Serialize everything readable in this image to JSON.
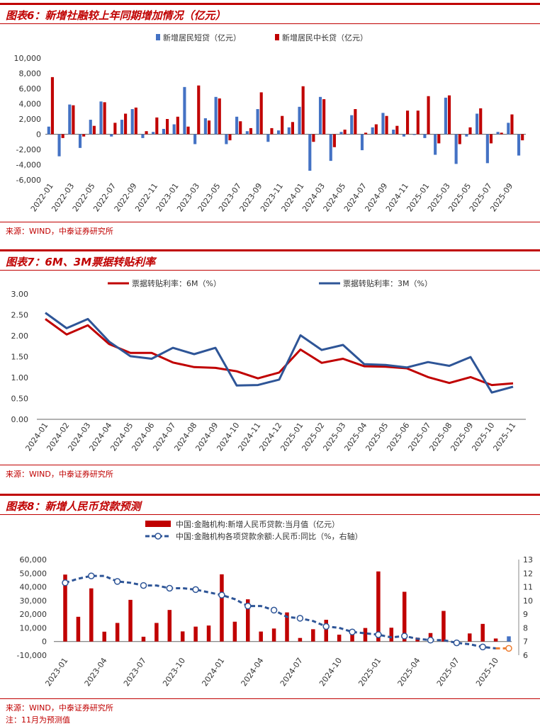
{
  "chart_data": [
    {
      "type": "bar",
      "title": "图表6：新增社融较上年同期增加情况（亿元）",
      "source": "来源：WIND，中泰证券研究所",
      "ylim": [
        -6000,
        10000
      ],
      "yticks": [
        "10,000",
        "8,000",
        "6,000",
        "4,000",
        "2,000",
        "0",
        "-2,000",
        "-4,000",
        "-6,000"
      ],
      "ytick_values": [
        10000,
        8000,
        6000,
        4000,
        2000,
        0,
        -2000,
        -4000,
        -6000
      ],
      "categories": [
        "2022-01",
        "2022-02",
        "2022-03",
        "2022-04",
        "2022-05",
        "2022-06",
        "2022-07",
        "2022-08",
        "2022-09",
        "2022-10",
        "2022-11",
        "2022-12",
        "2023-01",
        "2023-02",
        "2023-03",
        "2023-04",
        "2023-05",
        "2023-06",
        "2023-07",
        "2023-08",
        "2023-09",
        "2023-10",
        "2023-11",
        "2023-12",
        "2024-01",
        "2024-02",
        "2024-03",
        "2024-04",
        "2024-05",
        "2024-06",
        "2024-07",
        "2024-08",
        "2024-09",
        "2024-10",
        "2024-11",
        "2024-12",
        "2025-01",
        "2025-02",
        "2025-03",
        "2025-04",
        "2025-05",
        "2025-06",
        "2025-07",
        "2025-08",
        "2025-09",
        "2025-10"
      ],
      "xtick_labels": [
        "2022-01",
        "2022-03",
        "2022-05",
        "2022-07",
        "2022-09",
        "2022-11",
        "2023-01",
        "2023-03",
        "2023-05",
        "2023-07",
        "2023-09",
        "2023-11",
        "2024-01",
        "2024-03",
        "2024-05",
        "2024-07",
        "2024-09",
        "2024-11",
        "2025-01",
        "2025-03",
        "2025-05",
        "2025-07",
        "2025-09"
      ],
      "series": [
        {
          "name": "新增居民短贷（亿元）",
          "color": "#4472c4",
          "values": [
            1000,
            -2900,
            3900,
            -1800,
            1900,
            4300,
            -300,
            1900,
            3300,
            -500,
            300,
            700,
            1300,
            6200,
            -1300,
            2100,
            4900,
            -1300,
            2300,
            400,
            3300,
            -1000,
            500,
            900,
            3600,
            -4800,
            4900,
            -3500,
            300,
            2500,
            -2100,
            900,
            2800,
            600,
            -300,
            -100,
            -500,
            -2700,
            4800,
            -3900,
            -300,
            2700,
            -3800,
            300,
            1500,
            -2800
          ]
        },
        {
          "name": "新增居民中长贷（亿元）",
          "color": "#c00000",
          "values": [
            7500,
            -500,
            3800,
            -300,
            1100,
            4200,
            1500,
            2700,
            3500,
            400,
            2200,
            2000,
            2300,
            1000,
            6400,
            1800,
            4700,
            -800,
            1700,
            800,
            5500,
            800,
            2400,
            1600,
            6300,
            -1000,
            4600,
            -1700,
            600,
            3300,
            200,
            1300,
            2400,
            1100,
            3100,
            3100,
            5000,
            -1200,
            5100,
            -1300,
            900,
            3400,
            -1200,
            200,
            2600,
            -800
          ]
        }
      ]
    },
    {
      "type": "line",
      "title": "图表7：6M、3M票据转贴利率",
      "source": "来源：WIND，中泰证券研究所",
      "ylim": [
        0,
        3
      ],
      "yticks": [
        "3.00",
        "2.50",
        "2.00",
        "1.50",
        "1.00",
        "0.50",
        "0.00"
      ],
      "ytick_values": [
        3,
        2.5,
        2,
        1.5,
        1,
        0.5,
        0
      ],
      "categories": [
        "2024-01",
        "2024-02",
        "2024-03",
        "2024-04",
        "2024-05",
        "2024-06",
        "2024-07",
        "2024-08",
        "2024-09",
        "2024-10",
        "2024-11",
        "2024-12",
        "2025-01",
        "2025-02",
        "2025-03",
        "2025-04",
        "2025-05",
        "2025-06",
        "2025-07",
        "2025-08",
        "2025-09",
        "2025-10",
        "2025-11"
      ],
      "series": [
        {
          "name": "票据转贴利率：6M（%）",
          "color": "#c00000",
          "values": [
            2.4,
            2.03,
            2.25,
            1.8,
            1.59,
            1.59,
            1.36,
            1.25,
            1.23,
            1.15,
            0.98,
            1.12,
            1.67,
            1.35,
            1.45,
            1.27,
            1.26,
            1.22,
            1.01,
            0.87,
            1.01,
            0.82,
            0.86
          ]
        },
        {
          "name": "票据转贴利率：3M（%）",
          "color": "#2e5597",
          "values": [
            2.55,
            2.18,
            2.4,
            1.86,
            1.51,
            1.45,
            1.71,
            1.56,
            1.71,
            0.81,
            0.82,
            0.95,
            2.01,
            1.66,
            1.78,
            1.32,
            1.3,
            1.24,
            1.37,
            1.28,
            1.49,
            0.64,
            0.78
          ]
        }
      ]
    },
    {
      "type": "bar+line",
      "title": "图表8：新增人民币贷款预测",
      "source": "来源：WIND，中泰证券研究所",
      "note": "注：11月为预测值",
      "ylim": [
        -10000,
        60000
      ],
      "yticks": [
        "60,000",
        "50,000",
        "40,000",
        "30,000",
        "20,000",
        "10,000",
        "0",
        "-10,000"
      ],
      "ytick_values": [
        60000,
        50000,
        40000,
        30000,
        20000,
        10000,
        0,
        -10000
      ],
      "y2lim": [
        6,
        13
      ],
      "y2ticks": [
        "13",
        "12",
        "11",
        "10",
        "9",
        "8",
        "7",
        "6"
      ],
      "y2tick_values": [
        13,
        12,
        11,
        10,
        9,
        8,
        7,
        6
      ],
      "categories": [
        "2023-01",
        "2023-02",
        "2023-03",
        "2023-04",
        "2023-05",
        "2023-06",
        "2023-07",
        "2023-08",
        "2023-09",
        "2023-10",
        "2023-11",
        "2023-12",
        "2024-01",
        "2024-02",
        "2024-03",
        "2024-04",
        "2024-05",
        "2024-06",
        "2024-07",
        "2024-08",
        "2024-09",
        "2024-10",
        "2024-11",
        "2024-12",
        "2025-01",
        "2025-02",
        "2025-03",
        "2025-04",
        "2025-05",
        "2025-06",
        "2025-07",
        "2025-08",
        "2025-09",
        "2025-10",
        "2025-11"
      ],
      "xtick_labels": [
        "2023-01",
        "2023-04",
        "2023-07",
        "2023-10",
        "2024-01",
        "2024-04",
        "2024-07",
        "2024-10",
        "2025-01",
        "2025-04",
        "2025-07",
        "2025-10"
      ],
      "series": [
        {
          "name": "中国:金融机构:新增人民币贷款:当月值（亿元）",
          "color": "#c00000",
          "forecast_color": "#4472c4",
          "values": [
            49000,
            18100,
            38900,
            7200,
            13600,
            30500,
            3500,
            13600,
            23100,
            7400,
            10900,
            11700,
            49200,
            14500,
            30900,
            7300,
            9500,
            21300,
            2600,
            9000,
            15900,
            5000,
            5800,
            9900,
            51300,
            10100,
            36400,
            2800,
            6200,
            22400,
            -500,
            5900,
            12900,
            2200,
            3800
          ]
        },
        {
          "name": "中国:金融机构各项贷款余额:人民币:同比（%，右轴）",
          "color": "#2e5597",
          "forecast_color": "#ed7d31",
          "values": [
            11.3,
            11.6,
            11.8,
            11.8,
            11.4,
            11.3,
            11.1,
            11.1,
            10.9,
            10.9,
            10.8,
            10.6,
            10.4,
            10.1,
            9.6,
            9.6,
            9.3,
            8.8,
            8.7,
            8.5,
            8.1,
            8.0,
            7.7,
            7.6,
            7.5,
            7.3,
            7.4,
            7.2,
            7.1,
            7.1,
            6.9,
            6.8,
            6.6,
            6.5,
            6.5
          ]
        }
      ]
    }
  ]
}
